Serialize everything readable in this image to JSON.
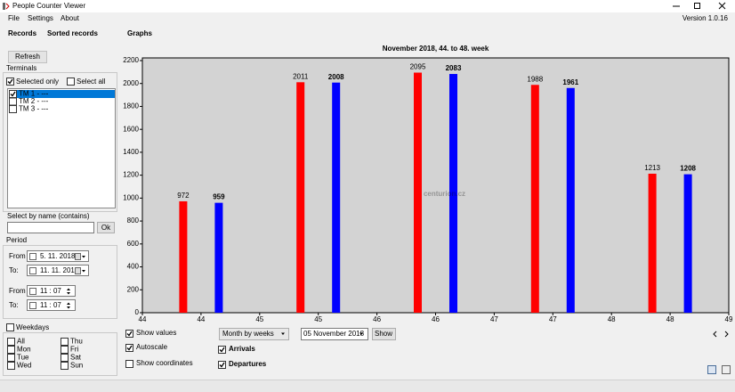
{
  "window": {
    "title": "People Counter Viewer",
    "version": "Version 1.0.16"
  },
  "menu": [
    "File",
    "Settings",
    "About"
  ],
  "tabs": [
    "Records",
    "Sorted records",
    "Graphs"
  ],
  "sidebar": {
    "refresh": "Refresh",
    "terminals_label": "Terminals",
    "selected_only": "Selected only",
    "select_all": "Select all",
    "terminals": [
      "TM 1 - ---",
      "TM 2 - ---",
      "TM 3 - ---"
    ],
    "select_by_name": "Select by name (contains)",
    "ok": "Ok",
    "period": "Period",
    "from": "From",
    "to": "To:",
    "from_date": "5. 11. 2018",
    "to_date": "11. 11. 2018",
    "from_time": "11 : 07",
    "to_time": "11 : 07",
    "weekdays": "Weekdays",
    "days": [
      "All",
      "Mon",
      "Tue",
      "Wed",
      "Thu",
      "Fri",
      "Sat",
      "Sun"
    ]
  },
  "chart_data": {
    "type": "bar",
    "title": "November 2018,   44. to 48. week",
    "watermark": "centurion.cz",
    "x": [
      44,
      45,
      46,
      47,
      48
    ],
    "series": [
      {
        "name": "Arrivals",
        "color": "#ff0000",
        "values": [
          972,
          2011,
          2095,
          1988,
          1213
        ]
      },
      {
        "name": "Departures",
        "color": "#0000ff",
        "values": [
          959,
          2008,
          2083,
          1961,
          1208
        ]
      }
    ],
    "xlim": [
      44,
      49
    ],
    "xticks": [
      44,
      {
        "value": 44.5,
        "label": "44"
      },
      45,
      {
        "value": 45.5,
        "label": "45"
      },
      46,
      {
        "value": 46.5,
        "label": "46"
      },
      47,
      {
        "value": 47.5,
        "label": "47"
      },
      48,
      {
        "value": 48.5,
        "label": "48"
      },
      49
    ],
    "ylim": [
      0,
      2200
    ],
    "yticks": [
      0,
      200,
      400,
      600,
      800,
      1000,
      1200,
      1400,
      1600,
      1800,
      2000,
      2200
    ],
    "background": "#d3d3d3"
  },
  "controls": {
    "show_values": "Show values",
    "autoscale": "Autoscale",
    "show_coordinates": "Show coordinates",
    "mode": "Month by weeks",
    "date": "05 November 2018",
    "show": "Show"
  }
}
